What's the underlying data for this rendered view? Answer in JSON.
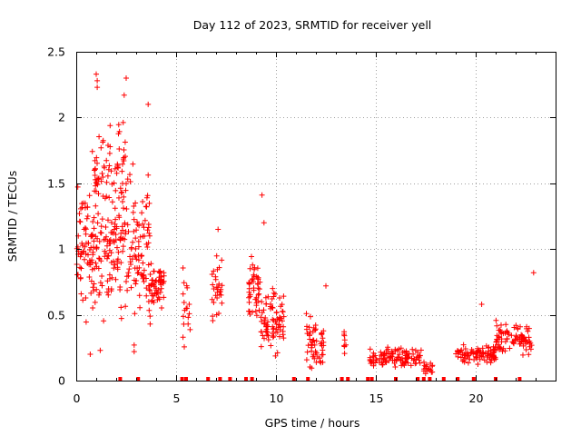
{
  "chart_data": {
    "type": "scatter",
    "title": "Day 112 of 2023, SRMTID for receiver yell",
    "xlabel": "GPS time / hours",
    "ylabel": "SRMTID / TECUs",
    "xlim": [
      0,
      24
    ],
    "ylim": [
      0,
      2.5
    ],
    "xticks": [
      0,
      5,
      10,
      15,
      20
    ],
    "yticks": [
      0,
      0.5,
      1,
      1.5,
      2,
      2.5
    ],
    "xtick_labels": [
      "0",
      "5",
      "10",
      "15",
      "20"
    ],
    "ytick_labels": [
      "0",
      "0.5",
      "1",
      "1.5",
      "2",
      "2.5"
    ],
    "grid": true,
    "legend": "none",
    "marker": "+",
    "color": "#ff0000",
    "clusters": [
      {
        "x_start": 0.0,
        "x_end": 2.2,
        "y_center": 1.0,
        "y_spread": 0.45,
        "count": 170
      },
      {
        "x_start": 0.8,
        "x_end": 2.6,
        "y_center": 1.6,
        "y_spread": 0.35,
        "count": 70
      },
      {
        "x_start": 2.2,
        "x_end": 3.7,
        "y_center": 1.05,
        "y_spread": 0.5,
        "count": 110
      },
      {
        "x_start": 3.6,
        "x_end": 4.4,
        "y_center": 0.72,
        "y_spread": 0.18,
        "count": 60
      },
      {
        "x_start": 5.3,
        "x_end": 5.7,
        "y_center": 0.55,
        "y_spread": 0.3,
        "count": 18
      },
      {
        "x_start": 6.8,
        "x_end": 7.3,
        "y_center": 0.7,
        "y_spread": 0.32,
        "count": 30
      },
      {
        "x_start": 8.6,
        "x_end": 9.2,
        "y_center": 0.7,
        "y_spread": 0.25,
        "count": 45
      },
      {
        "x_start": 9.2,
        "x_end": 10.4,
        "y_center": 0.45,
        "y_spread": 0.22,
        "count": 80
      },
      {
        "x_start": 11.5,
        "x_end": 12.4,
        "y_center": 0.28,
        "y_spread": 0.2,
        "count": 55
      },
      {
        "x_start": 13.4,
        "x_end": 13.6,
        "y_center": 0.3,
        "y_spread": 0.12,
        "count": 8
      },
      {
        "x_start": 14.7,
        "x_end": 17.3,
        "y_center": 0.18,
        "y_spread": 0.07,
        "count": 110
      },
      {
        "x_start": 17.3,
        "x_end": 17.9,
        "y_center": 0.1,
        "y_spread": 0.06,
        "count": 18
      },
      {
        "x_start": 19.0,
        "x_end": 21.0,
        "y_center": 0.2,
        "y_spread": 0.08,
        "count": 90
      },
      {
        "x_start": 21.0,
        "x_end": 22.8,
        "y_center": 0.32,
        "y_spread": 0.13,
        "count": 90
      }
    ],
    "outliers": [
      {
        "x": 1.0,
        "y": 2.33
      },
      {
        "x": 1.05,
        "y": 2.28
      },
      {
        "x": 1.05,
        "y": 2.23
      },
      {
        "x": 2.5,
        "y": 2.3
      },
      {
        "x": 2.4,
        "y": 2.17
      },
      {
        "x": 3.6,
        "y": 2.1
      },
      {
        "x": 9.3,
        "y": 1.41
      },
      {
        "x": 9.4,
        "y": 1.2
      },
      {
        "x": 7.1,
        "y": 1.15
      },
      {
        "x": 12.5,
        "y": 0.72
      },
      {
        "x": 20.3,
        "y": 0.58
      },
      {
        "x": 22.9,
        "y": 0.82
      },
      {
        "x": 2.9,
        "y": 0.27
      },
      {
        "x": 2.9,
        "y": 0.22
      },
      {
        "x": 1.2,
        "y": 0.23
      },
      {
        "x": 0.7,
        "y": 0.2
      },
      {
        "x": 3.7,
        "y": 0.43
      }
    ],
    "baseline_x": [
      2.2,
      3.1,
      5.3,
      5.5,
      6.6,
      7.2,
      7.7,
      8.5,
      8.8,
      10.9,
      11.6,
      13.3,
      13.6,
      14.6,
      14.8,
      16.0,
      17.1,
      17.4,
      17.7,
      18.4,
      19.1,
      19.9,
      21.0,
      22.2
    ]
  }
}
